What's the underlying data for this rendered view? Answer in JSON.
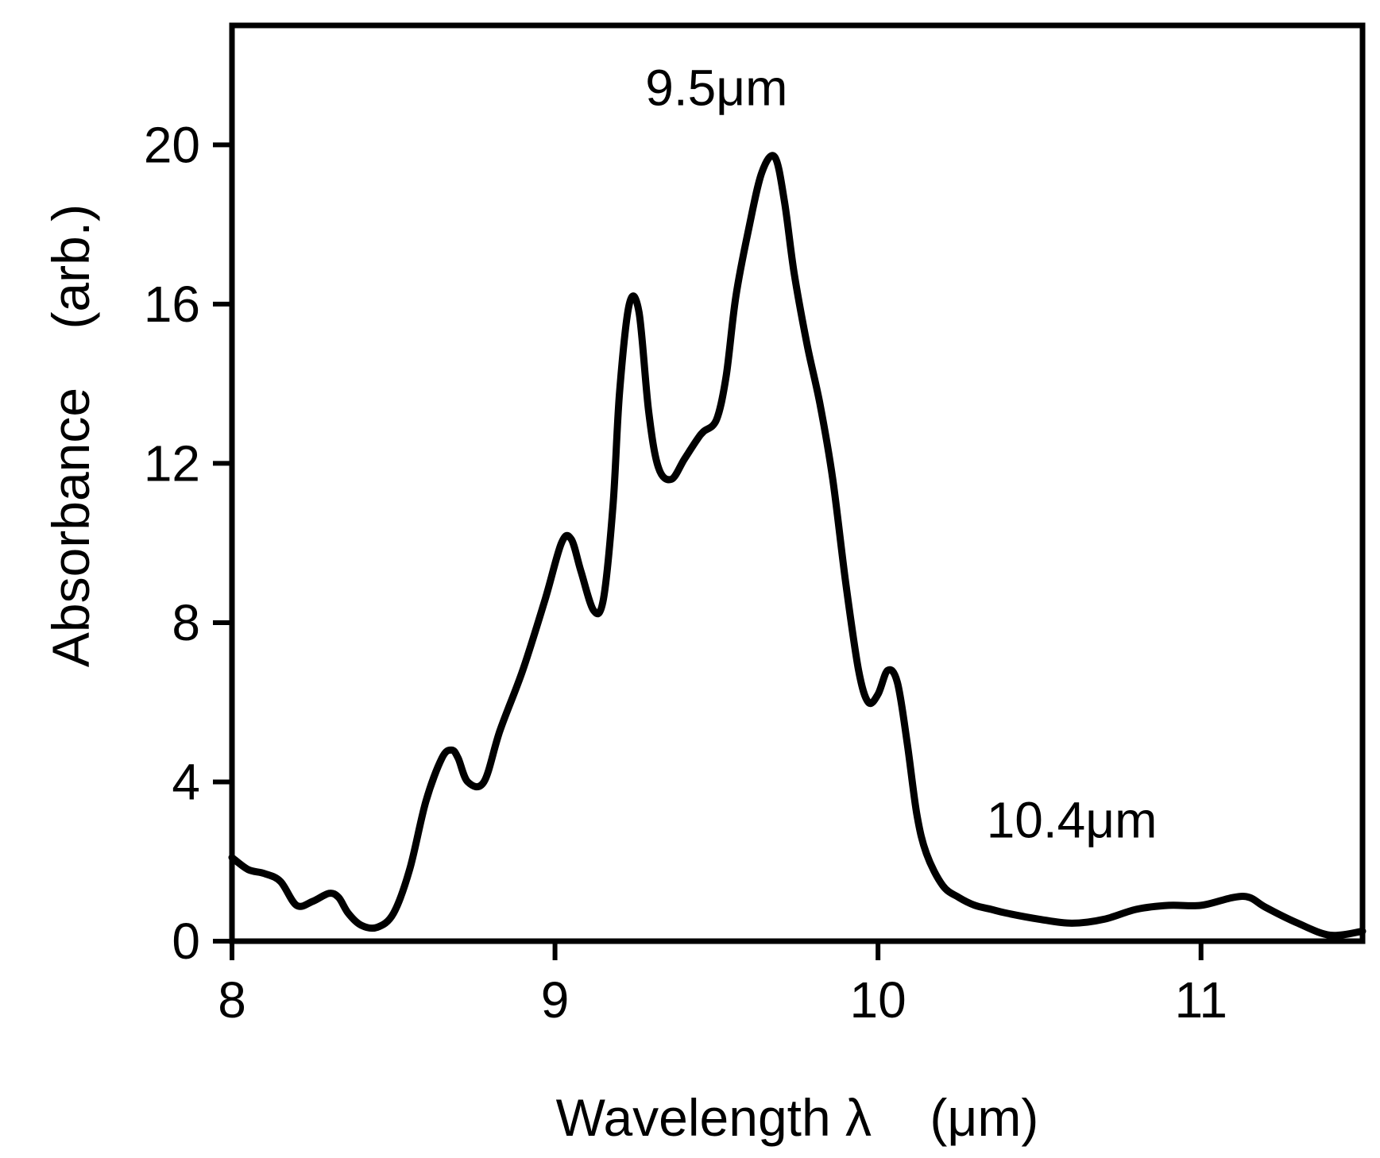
{
  "chart_data": {
    "type": "line",
    "title": "",
    "xlabel": "Wavelength λ    (μm)",
    "ylabel": "Absorbance    (arb.)",
    "xlim": [
      8,
      11.5
    ],
    "ylim": [
      0,
      23
    ],
    "xticks": [
      8,
      9,
      10,
      11
    ],
    "yticks": [
      0,
      4,
      8,
      12,
      16,
      20
    ],
    "grid": false,
    "legend": "none",
    "line_color": "#000000",
    "annotations": [
      {
        "text": "9.5μm",
        "x": 9.5,
        "y": 21.0
      },
      {
        "text": "10.4μm",
        "x": 10.6,
        "y": 2.6
      }
    ],
    "series": [
      {
        "x": [
          8.0,
          8.05,
          8.1,
          8.15,
          8.2,
          8.25,
          8.3,
          8.33,
          8.36,
          8.4,
          8.45,
          8.5,
          8.55,
          8.6,
          8.65,
          8.68,
          8.7,
          8.73,
          8.78,
          8.83,
          8.9,
          8.97,
          9.02,
          9.05,
          9.08,
          9.12,
          9.15,
          9.18,
          9.2,
          9.23,
          9.26,
          9.29,
          9.32,
          9.36,
          9.4,
          9.44,
          9.46,
          9.5,
          9.53,
          9.56,
          9.6,
          9.64,
          9.68,
          9.71,
          9.74,
          9.78,
          9.82,
          9.86,
          9.9,
          9.94,
          9.97,
          10.0,
          10.03,
          10.06,
          10.09,
          10.12,
          10.15,
          10.2,
          10.25,
          10.3,
          10.35,
          10.4,
          10.5,
          10.6,
          10.7,
          10.8,
          10.9,
          11.0,
          11.1,
          11.15,
          11.2,
          11.3,
          11.4,
          11.5
        ],
        "y": [
          2.1,
          1.8,
          1.7,
          1.5,
          0.9,
          1.0,
          1.2,
          1.1,
          0.7,
          0.4,
          0.35,
          0.7,
          1.8,
          3.5,
          4.6,
          4.8,
          4.6,
          4.0,
          4.0,
          5.3,
          6.8,
          8.6,
          10.0,
          10.1,
          9.3,
          8.3,
          8.6,
          11.0,
          13.8,
          16.0,
          15.8,
          13.3,
          11.9,
          11.6,
          12.1,
          12.6,
          12.8,
          13.1,
          14.2,
          16.2,
          17.9,
          19.3,
          19.7,
          18.6,
          16.8,
          15.0,
          13.5,
          11.6,
          9.0,
          6.8,
          6.0,
          6.2,
          6.8,
          6.5,
          5.0,
          3.2,
          2.2,
          1.4,
          1.1,
          0.9,
          0.8,
          0.7,
          0.55,
          0.45,
          0.55,
          0.8,
          0.9,
          0.9,
          1.1,
          1.1,
          0.85,
          0.45,
          0.15,
          0.25
        ]
      }
    ]
  }
}
